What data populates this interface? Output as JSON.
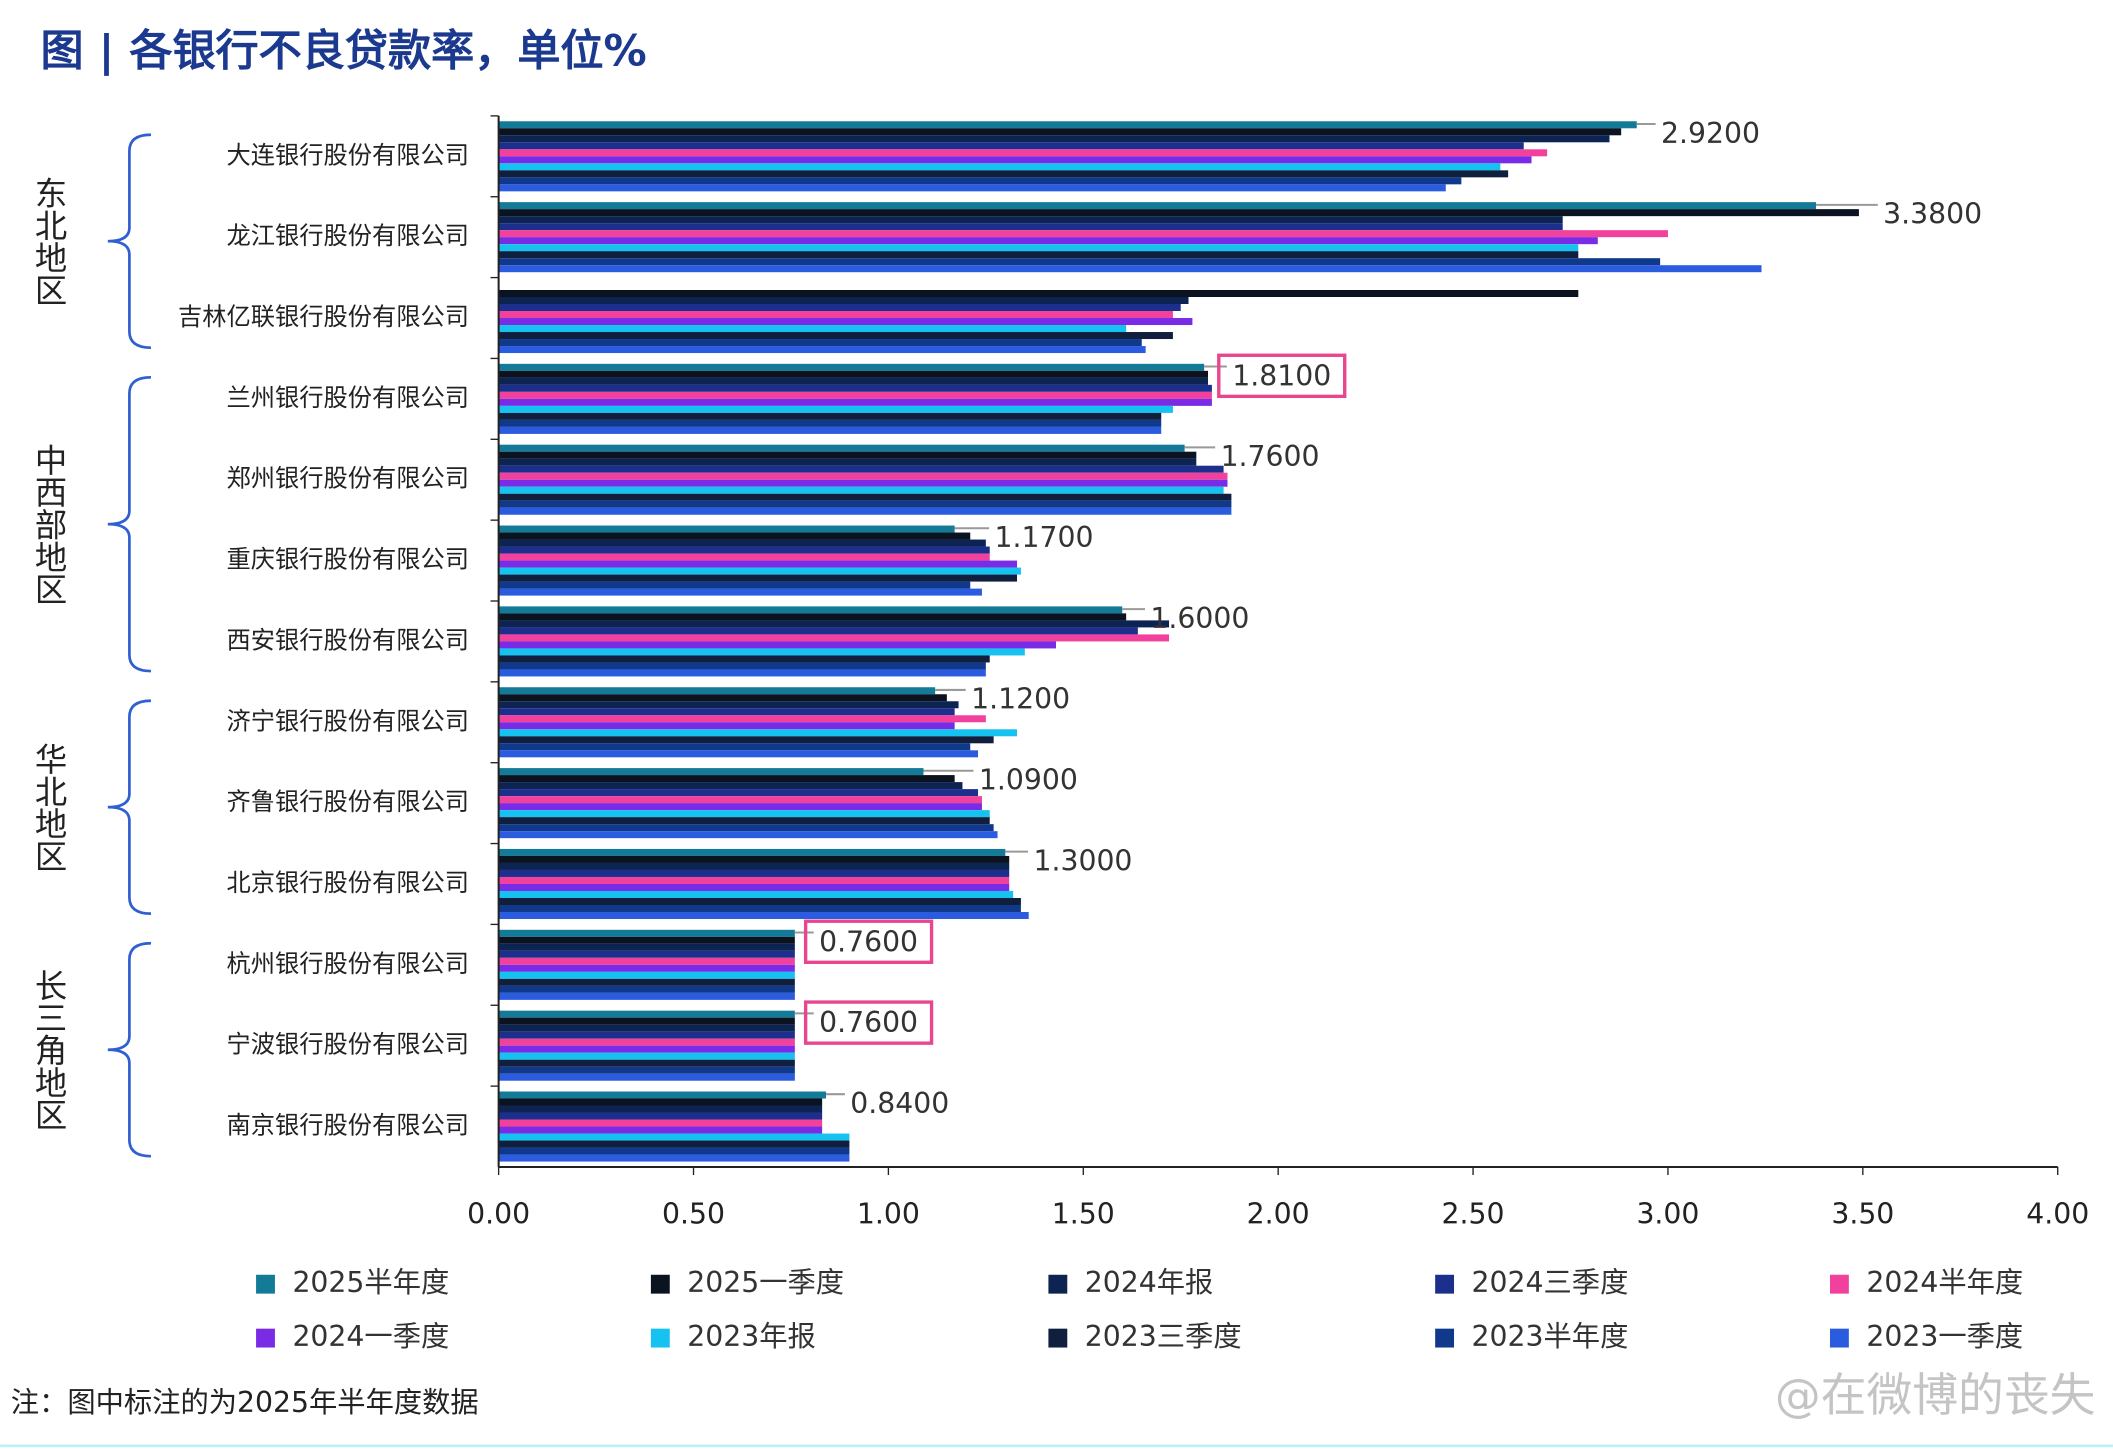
{
  "chart_data": {
    "type": "hbar_grouped",
    "title": "图 | 各银行不良贷款率，单位%",
    "note": "注：图中标注的为2025年半年度数据",
    "watermark": "@在微博的丧失",
    "categories": [
      "大连银行股份有限公司",
      "龙江银行股份有限公司",
      "吉林亿联银行股份有限公司",
      "兰州银行股份有限公司",
      "郑州银行股份有限公司",
      "重庆银行股份有限公司",
      "西安银行股份有限公司",
      "济宁银行股份有限公司",
      "齐鲁银行股份有限公司",
      "北京银行股份有限公司",
      "杭州银行股份有限公司",
      "宁波银行股份有限公司",
      "南京银行股份有限公司"
    ],
    "groups": [
      {
        "label": "东北地区",
        "first": 0,
        "last": 2
      },
      {
        "label": "中西部地区",
        "first": 3,
        "last": 6
      },
      {
        "label": "华北地区",
        "first": 7,
        "last": 9
      },
      {
        "label": "长三角地区",
        "first": 10,
        "last": 12
      }
    ],
    "boxed_labels": [
      3,
      10,
      11
    ],
    "series": [
      {
        "name": "2025半年度",
        "color": "#137a98",
        "values": [
          2.92,
          3.38,
          null,
          1.81,
          1.76,
          1.17,
          1.6,
          1.12,
          1.09,
          1.3,
          0.76,
          0.76,
          0.84
        ],
        "value_labels": [
          "2.9200",
          "3.3800",
          null,
          "1.8100",
          "1.7600",
          "1.1700",
          "1.6000",
          "1.1200",
          "1.0900",
          "1.3000",
          "0.7600",
          "0.7600",
          "0.8400"
        ]
      },
      {
        "name": "2025一季度",
        "color": "#0b1220",
        "values": [
          2.88,
          3.49,
          2.77,
          1.82,
          1.79,
          1.21,
          1.61,
          1.15,
          1.17,
          1.31,
          0.76,
          0.76,
          0.83
        ]
      },
      {
        "name": "2024年报",
        "color": "#0d2352",
        "values": [
          2.85,
          2.73,
          1.77,
          1.82,
          1.79,
          1.25,
          1.72,
          1.18,
          1.19,
          1.31,
          0.76,
          0.76,
          0.83
        ]
      },
      {
        "name": "2024三季度",
        "color": "#1c2f8c",
        "values": [
          2.63,
          2.73,
          1.75,
          1.83,
          1.86,
          1.26,
          1.64,
          1.17,
          1.23,
          1.31,
          0.76,
          0.76,
          0.83
        ]
      },
      {
        "name": "2024半年度",
        "color": "#f2409d",
        "values": [
          2.69,
          3.0,
          1.73,
          1.83,
          1.87,
          1.26,
          1.72,
          1.25,
          1.24,
          1.31,
          0.76,
          0.76,
          0.83
        ]
      },
      {
        "name": "2024一季度",
        "color": "#7a2be6",
        "values": [
          2.65,
          2.82,
          1.78,
          1.83,
          1.87,
          1.33,
          1.43,
          1.17,
          1.24,
          1.31,
          0.76,
          0.76,
          0.83
        ]
      },
      {
        "name": "2023年报",
        "color": "#16c2f0",
        "values": [
          2.57,
          2.77,
          1.61,
          1.73,
          1.86,
          1.34,
          1.35,
          1.33,
          1.26,
          1.32,
          0.76,
          0.76,
          0.9
        ]
      },
      {
        "name": "2023三季度",
        "color": "#0f1f3d",
        "values": [
          2.59,
          2.77,
          1.73,
          1.7,
          1.88,
          1.33,
          1.26,
          1.27,
          1.26,
          1.34,
          0.76,
          0.76,
          0.9
        ]
      },
      {
        "name": "2023半年度",
        "color": "#10398c",
        "values": [
          2.47,
          2.98,
          1.65,
          1.7,
          1.88,
          1.21,
          1.25,
          1.21,
          1.27,
          1.34,
          0.76,
          0.76,
          0.9
        ]
      },
      {
        "name": "2023一季度",
        "color": "#2b5ce0",
        "values": [
          2.43,
          3.24,
          1.66,
          1.7,
          1.88,
          1.24,
          1.25,
          1.23,
          1.28,
          1.36,
          0.76,
          0.76,
          0.9
        ]
      }
    ],
    "xlim": [
      0,
      4
    ],
    "xticks": [
      {
        "value": 0,
        "label": "0.00"
      },
      {
        "value": 0.5,
        "label": "0.50"
      },
      {
        "value": 1,
        "label": "1.00"
      },
      {
        "value": 1.5,
        "label": "1.50"
      },
      {
        "value": 2,
        "label": "2.00"
      },
      {
        "value": 2.5,
        "label": "2.50"
      },
      {
        "value": 3,
        "label": "3.00"
      },
      {
        "value": 3.5,
        "label": "3.50"
      },
      {
        "value": 4,
        "label": "4.00"
      }
    ]
  }
}
